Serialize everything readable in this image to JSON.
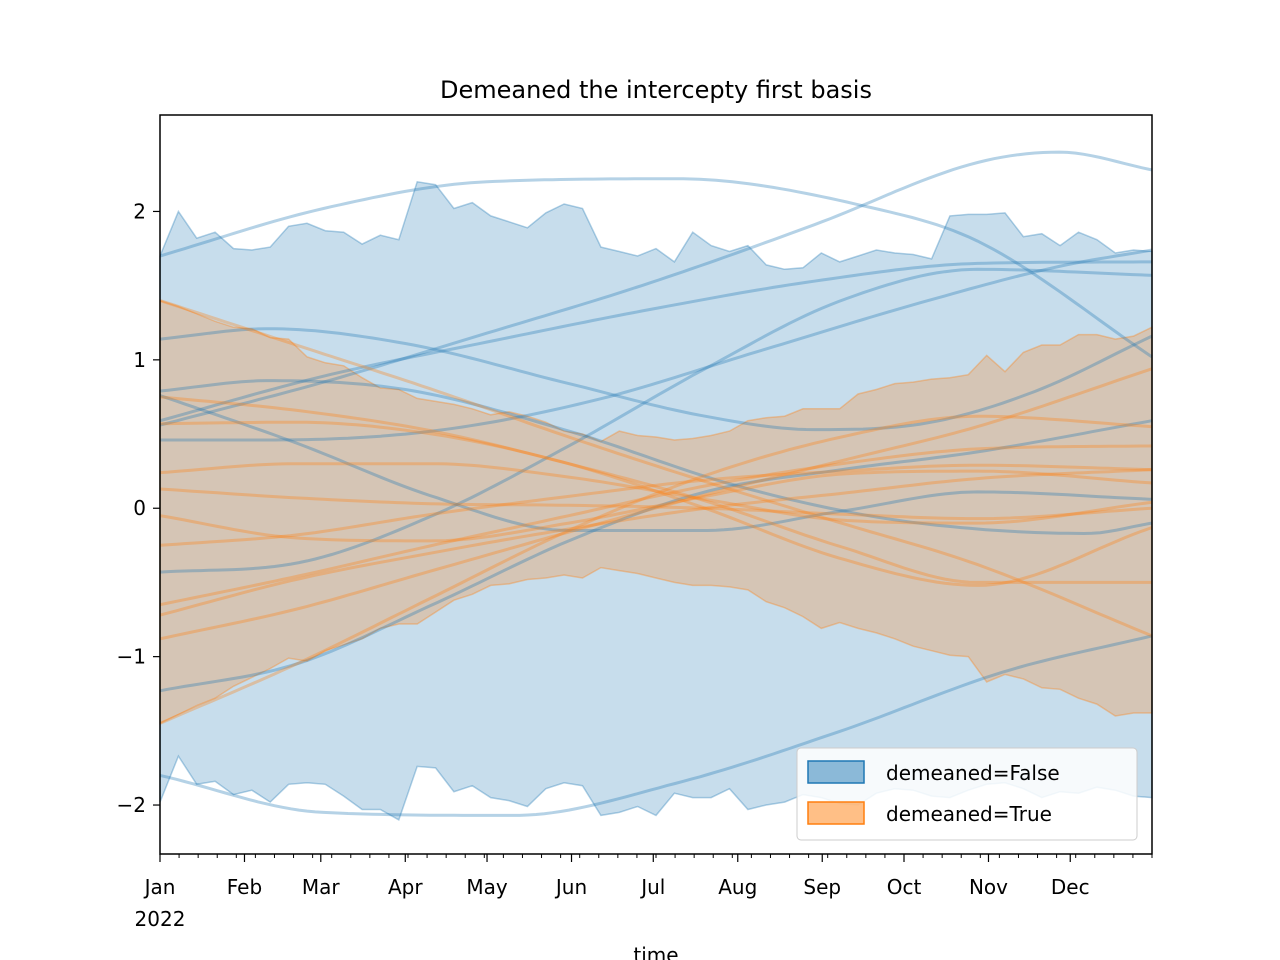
{
  "chart_data": {
    "type": "area",
    "title": "Demeaned the intercepty first basis",
    "xlabel": "time",
    "ylabel": "",
    "x_start": "2022-01-01",
    "x_end": "2022-12-31",
    "ylim": [
      -2.33,
      2.65
    ],
    "yticks": [
      -2,
      -1,
      0,
      1,
      2
    ],
    "ytick_labels": [
      "−2",
      "−1",
      "0",
      "1",
      "2"
    ],
    "xticks": [
      {
        "date": "2022-01-01",
        "label": "Jan",
        "sublabel": "2022"
      },
      {
        "date": "2022-02-01",
        "label": "Feb"
      },
      {
        "date": "2022-03-01",
        "label": "Mar"
      },
      {
        "date": "2022-04-01",
        "label": "Apr"
      },
      {
        "date": "2022-05-01",
        "label": "May"
      },
      {
        "date": "2022-06-01",
        "label": "Jun"
      },
      {
        "date": "2022-07-01",
        "label": "Jul"
      },
      {
        "date": "2022-08-01",
        "label": "Aug"
      },
      {
        "date": "2022-09-01",
        "label": "Sep"
      },
      {
        "date": "2022-10-01",
        "label": "Oct"
      },
      {
        "date": "2022-11-01",
        "label": "Nov"
      },
      {
        "date": "2022-12-01",
        "label": "Dec"
      }
    ],
    "legend_position": "lower-right",
    "series": [
      {
        "name": "demeaned=False",
        "color": "#1f77b4",
        "upper": [
          1.7,
          2.0,
          1.82,
          1.86,
          1.75,
          1.74,
          1.76,
          1.9,
          1.92,
          1.87,
          1.86,
          1.78,
          1.84,
          1.81,
          2.2,
          2.18,
          2.02,
          2.06,
          1.97,
          1.93,
          1.89,
          1.99,
          2.05,
          2.02,
          1.76,
          1.73,
          1.7,
          1.75,
          1.66,
          1.86,
          1.77,
          1.73,
          1.77,
          1.64,
          1.61,
          1.62,
          1.72,
          1.66,
          1.7,
          1.74,
          1.72,
          1.71,
          1.68,
          1.97,
          1.98,
          1.98,
          1.99,
          1.83,
          1.85,
          1.77,
          1.86,
          1.81,
          1.72,
          1.74,
          1.73
        ],
        "lower": [
          -1.98,
          -1.67,
          -1.86,
          -1.84,
          -1.93,
          -1.9,
          -1.98,
          -1.86,
          -1.85,
          -1.86,
          -1.94,
          -2.03,
          -2.03,
          -2.1,
          -1.74,
          -1.75,
          -1.91,
          -1.87,
          -1.95,
          -1.97,
          -2.01,
          -1.89,
          -1.85,
          -1.87,
          -2.07,
          -2.05,
          -2.01,
          -2.07,
          -1.92,
          -1.95,
          -1.95,
          -1.89,
          -2.03,
          -2.0,
          -1.98,
          -1.93,
          -1.95,
          -1.99,
          -2.0,
          -1.92,
          -1.89,
          -1.9,
          -1.94,
          -1.95,
          -1.9,
          -1.86,
          -1.85,
          -1.89,
          -1.95,
          -1.91,
          -1.92,
          -1.88,
          -1.9,
          -1.94,
          -1.95
        ],
        "curves": [
          [
            [
              0,
              1.7
            ],
            [
              60,
              2.02
            ],
            [
              120,
              2.2
            ],
            [
              190,
              2.22
            ],
            [
              260,
              2.03
            ],
            [
              300,
              1.8
            ],
            [
              364,
              1.02
            ]
          ],
          [
            [
              0,
              -1.8
            ],
            [
              60,
              -2.05
            ],
            [
              130,
              -2.07
            ],
            [
              190,
              -1.85
            ],
            [
              250,
              -1.5
            ],
            [
              310,
              -1.1
            ],
            [
              364,
              -0.86
            ]
          ],
          [
            [
              0,
              0.56
            ],
            [
              60,
              0.85
            ],
            [
              120,
              1.18
            ],
            [
              180,
              1.52
            ],
            [
              240,
              1.91
            ],
            [
              300,
              2.33
            ],
            [
              330,
              2.4
            ],
            [
              364,
              2.28
            ]
          ],
          [
            [
              0,
              1.14
            ],
            [
              40,
              1.21
            ],
            [
              90,
              1.11
            ],
            [
              150,
              0.84
            ],
            [
              200,
              0.62
            ],
            [
              240,
              0.53
            ],
            [
              280,
              0.57
            ],
            [
              320,
              0.78
            ],
            [
              364,
              1.16
            ]
          ],
          [
            [
              0,
              0.79
            ],
            [
              40,
              0.86
            ],
            [
              90,
              0.8
            ],
            [
              150,
              0.52
            ],
            [
              210,
              0.16
            ],
            [
              260,
              -0.05
            ],
            [
              300,
              -0.14
            ],
            [
              340,
              -0.17
            ],
            [
              364,
              -0.1
            ]
          ],
          [
            [
              0,
              0.76
            ],
            [
              50,
              0.44
            ],
            [
              100,
              0.08
            ],
            [
              150,
              -0.15
            ],
            [
              200,
              -0.15
            ],
            [
              250,
              -0.02
            ],
            [
              300,
              0.11
            ],
            [
              364,
              0.06
            ]
          ],
          [
            [
              0,
              0.46
            ],
            [
              40,
              0.46
            ],
            [
              100,
              0.52
            ],
            [
              160,
              0.73
            ],
            [
              220,
              1.06
            ],
            [
              280,
              1.39
            ],
            [
              330,
              1.63
            ],
            [
              364,
              1.74
            ]
          ],
          [
            [
              0,
              -0.43
            ],
            [
              50,
              -0.37
            ],
            [
              100,
              -0.05
            ],
            [
              150,
              0.42
            ],
            [
              200,
              0.94
            ],
            [
              250,
              1.4
            ],
            [
              300,
              1.61
            ],
            [
              364,
              1.57
            ]
          ],
          [
            [
              0,
              -1.23
            ],
            [
              50,
              -1.05
            ],
            [
              100,
              -0.65
            ],
            [
              150,
              -0.22
            ],
            [
              200,
              0.11
            ],
            [
              250,
              0.26
            ],
            [
              300,
              0.38
            ],
            [
              364,
              0.59
            ]
          ],
          [
            [
              0,
              0.59
            ],
            [
              60,
              0.89
            ],
            [
              120,
              1.12
            ],
            [
              180,
              1.34
            ],
            [
              240,
              1.53
            ],
            [
              300,
              1.65
            ],
            [
              364,
              1.66
            ]
          ]
        ]
      },
      {
        "name": "demeaned=True",
        "color": "#ff7f0e",
        "upper": [
          1.4,
          1.36,
          1.31,
          1.26,
          1.22,
          1.21,
          1.15,
          1.14,
          1.02,
          0.98,
          0.96,
          0.88,
          0.81,
          0.8,
          0.74,
          0.72,
          0.7,
          0.67,
          0.63,
          0.65,
          0.62,
          0.58,
          0.52,
          0.5,
          0.45,
          0.52,
          0.49,
          0.48,
          0.46,
          0.47,
          0.49,
          0.52,
          0.59,
          0.61,
          0.62,
          0.67,
          0.67,
          0.67,
          0.77,
          0.8,
          0.84,
          0.85,
          0.87,
          0.88,
          0.9,
          1.03,
          0.92,
          1.05,
          1.1,
          1.1,
          1.17,
          1.17,
          1.14,
          1.16,
          1.22
        ],
        "lower": [
          -1.45,
          -1.39,
          -1.33,
          -1.28,
          -1.2,
          -1.14,
          -1.08,
          -1.01,
          -1.03,
          -0.96,
          -0.92,
          -0.88,
          -0.81,
          -0.78,
          -0.78,
          -0.7,
          -0.62,
          -0.58,
          -0.52,
          -0.51,
          -0.48,
          -0.47,
          -0.45,
          -0.47,
          -0.4,
          -0.42,
          -0.44,
          -0.47,
          -0.5,
          -0.52,
          -0.52,
          -0.53,
          -0.55,
          -0.63,
          -0.67,
          -0.73,
          -0.81,
          -0.77,
          -0.81,
          -0.84,
          -0.88,
          -0.93,
          -0.96,
          -0.99,
          -1.0,
          -1.17,
          -1.12,
          -1.15,
          -1.21,
          -1.22,
          -1.28,
          -1.32,
          -1.4,
          -1.38,
          -1.38
        ],
        "curves": [
          [
            [
              0,
              1.4
            ],
            [
              50,
              1.1
            ],
            [
              100,
              0.8
            ],
            [
              150,
              0.48
            ],
            [
              200,
              0.18
            ],
            [
              250,
              -0.1
            ],
            [
              300,
              -0.38
            ],
            [
              364,
              -0.86
            ]
          ],
          [
            [
              0,
              -1.45
            ],
            [
              50,
              -1.05
            ],
            [
              100,
              -0.6
            ],
            [
              150,
              -0.15
            ],
            [
              200,
              0.22
            ],
            [
              250,
              0.48
            ],
            [
              300,
              0.62
            ],
            [
              364,
              0.55
            ]
          ],
          [
            [
              0,
              0.75
            ],
            [
              50,
              0.66
            ],
            [
              100,
              0.52
            ],
            [
              150,
              0.3
            ],
            [
              200,
              0.05
            ],
            [
              250,
              -0.26
            ],
            [
              300,
              -0.5
            ],
            [
              364,
              -0.5
            ]
          ],
          [
            [
              0,
              -0.88
            ],
            [
              50,
              -0.68
            ],
            [
              100,
              -0.42
            ],
            [
              150,
              -0.16
            ],
            [
              200,
              0.09
            ],
            [
              250,
              0.32
            ],
            [
              300,
              0.55
            ],
            [
              364,
              0.94
            ]
          ],
          [
            [
              0,
              0.13
            ],
            [
              50,
              0.07
            ],
            [
              100,
              0.03
            ],
            [
              150,
              0.02
            ],
            [
              200,
              0.0
            ],
            [
              250,
              -0.04
            ],
            [
              300,
              -0.07
            ],
            [
              364,
              0.0
            ]
          ],
          [
            [
              0,
              -0.05
            ],
            [
              50,
              -0.2
            ],
            [
              100,
              -0.22
            ],
            [
              150,
              -0.1
            ],
            [
              200,
              0.08
            ],
            [
              250,
              0.23
            ],
            [
              300,
              0.25
            ],
            [
              364,
              0.17
            ]
          ],
          [
            [
              0,
              0.24
            ],
            [
              50,
              0.3
            ],
            [
              100,
              0.3
            ],
            [
              150,
              0.21
            ],
            [
              200,
              0.06
            ],
            [
              250,
              -0.08
            ],
            [
              300,
              -0.1
            ],
            [
              364,
              0.04
            ]
          ],
          [
            [
              0,
              0.57
            ],
            [
              50,
              0.58
            ],
            [
              100,
              0.5
            ],
            [
              150,
              0.3
            ],
            [
              200,
              0.0
            ],
            [
              250,
              -0.34
            ],
            [
              300,
              -0.52
            ],
            [
              364,
              -0.13
            ]
          ],
          [
            [
              0,
              -0.25
            ],
            [
              50,
              -0.18
            ],
            [
              100,
              -0.04
            ],
            [
              150,
              0.08
            ],
            [
              200,
              0.19
            ],
            [
              250,
              0.25
            ],
            [
              300,
              0.29
            ],
            [
              364,
              0.26
            ]
          ],
          [
            [
              0,
              -0.65
            ],
            [
              50,
              -0.46
            ],
            [
              100,
              -0.25
            ],
            [
              150,
              -0.05
            ],
            [
              200,
              0.15
            ],
            [
              250,
              0.3
            ],
            [
              300,
              0.4
            ],
            [
              364,
              0.42
            ]
          ],
          [
            [
              0,
              -0.72
            ],
            [
              50,
              -0.48
            ],
            [
              100,
              -0.3
            ],
            [
              150,
              -0.14
            ],
            [
              200,
              0.0
            ],
            [
              250,
              0.1
            ],
            [
              300,
              0.2
            ],
            [
              364,
              0.26
            ]
          ]
        ]
      }
    ]
  }
}
